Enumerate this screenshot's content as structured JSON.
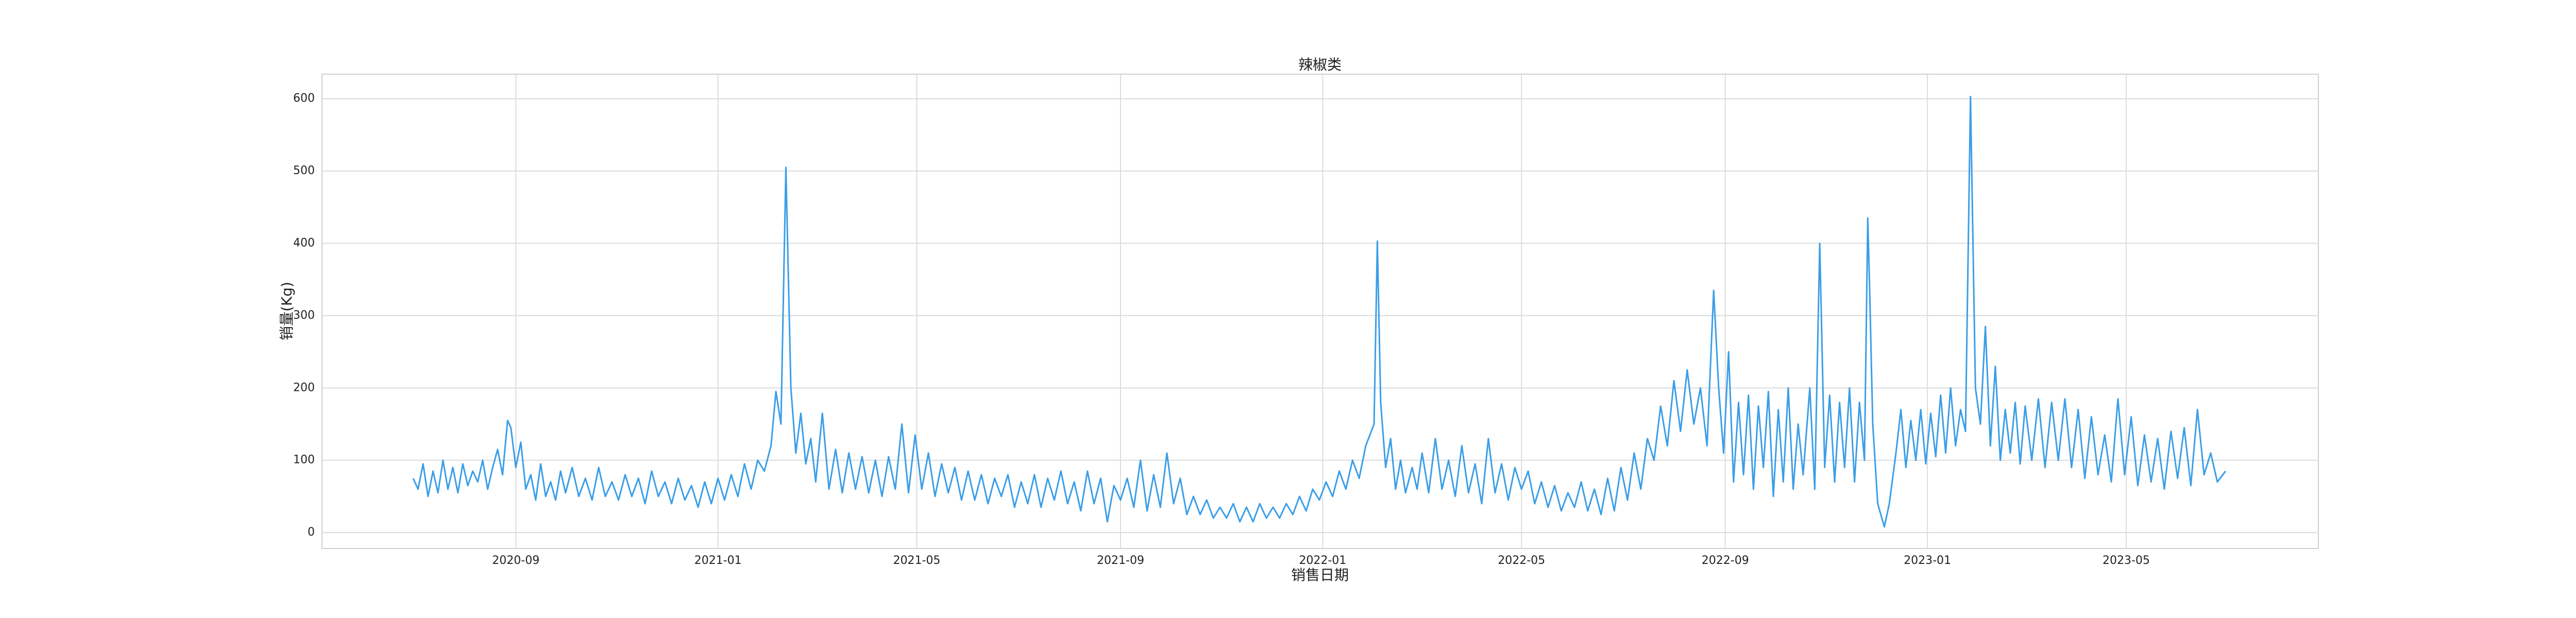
{
  "chart_data": {
    "type": "line",
    "title": "辣椒类",
    "xlabel": "销售日期",
    "ylabel": "销量(Kg)",
    "color": "#3a9ee8",
    "grid": true,
    "xlim": [
      "2020-05-07",
      "2023-08-25"
    ],
    "ylim": [
      -22,
      634
    ],
    "yticks": [
      0,
      100,
      200,
      300,
      400,
      500,
      600
    ],
    "xticks": [
      {
        "value": "2020-09-01",
        "label": "2020-09"
      },
      {
        "value": "2021-01-01",
        "label": "2021-01"
      },
      {
        "value": "2021-05-01",
        "label": "2021-05"
      },
      {
        "value": "2021-09-01",
        "label": "2021-09"
      },
      {
        "value": "2022-01-01",
        "label": "2022-01"
      },
      {
        "value": "2022-05-01",
        "label": "2022-05"
      },
      {
        "value": "2022-09-01",
        "label": "2022-09"
      },
      {
        "value": "2023-01-01",
        "label": "2023-01"
      },
      {
        "value": "2023-05-01",
        "label": "2023-05"
      }
    ],
    "x": [
      "2020-07-01",
      "2020-07-04",
      "2020-07-07",
      "2020-07-10",
      "2020-07-13",
      "2020-07-16",
      "2020-07-19",
      "2020-07-22",
      "2020-07-25",
      "2020-07-28",
      "2020-07-31",
      "2020-08-03",
      "2020-08-06",
      "2020-08-09",
      "2020-08-12",
      "2020-08-15",
      "2020-08-18",
      "2020-08-21",
      "2020-08-24",
      "2020-08-27",
      "2020-08-29",
      "2020-09-01",
      "2020-09-04",
      "2020-09-07",
      "2020-09-10",
      "2020-09-13",
      "2020-09-16",
      "2020-09-19",
      "2020-09-22",
      "2020-09-25",
      "2020-09-28",
      "2020-10-01",
      "2020-10-05",
      "2020-10-09",
      "2020-10-13",
      "2020-10-17",
      "2020-10-21",
      "2020-10-25",
      "2020-10-29",
      "2020-11-02",
      "2020-11-06",
      "2020-11-10",
      "2020-11-14",
      "2020-11-18",
      "2020-11-22",
      "2020-11-26",
      "2020-11-30",
      "2020-12-04",
      "2020-12-08",
      "2020-12-12",
      "2020-12-16",
      "2020-12-20",
      "2020-12-24",
      "2020-12-28",
      "2021-01-01",
      "2021-01-05",
      "2021-01-09",
      "2021-01-13",
      "2021-01-17",
      "2021-01-21",
      "2021-01-25",
      "2021-01-29",
      "2021-02-02",
      "2021-02-05",
      "2021-02-08",
      "2021-02-11",
      "2021-02-14",
      "2021-02-17",
      "2021-02-20",
      "2021-02-23",
      "2021-02-26",
      "2021-03-01",
      "2021-03-05",
      "2021-03-09",
      "2021-03-13",
      "2021-03-17",
      "2021-03-21",
      "2021-03-25",
      "2021-03-29",
      "2021-04-02",
      "2021-04-06",
      "2021-04-10",
      "2021-04-14",
      "2021-04-18",
      "2021-04-22",
      "2021-04-26",
      "2021-04-30",
      "2021-05-04",
      "2021-05-08",
      "2021-05-12",
      "2021-05-16",
      "2021-05-20",
      "2021-05-24",
      "2021-05-28",
      "2021-06-01",
      "2021-06-05",
      "2021-06-09",
      "2021-06-13",
      "2021-06-17",
      "2021-06-21",
      "2021-06-25",
      "2021-06-29",
      "2021-07-03",
      "2021-07-07",
      "2021-07-11",
      "2021-07-15",
      "2021-07-19",
      "2021-07-23",
      "2021-07-27",
      "2021-07-31",
      "2021-08-04",
      "2021-08-08",
      "2021-08-12",
      "2021-08-16",
      "2021-08-20",
      "2021-08-24",
      "2021-08-28",
      "2021-09-01",
      "2021-09-05",
      "2021-09-09",
      "2021-09-13",
      "2021-09-17",
      "2021-09-21",
      "2021-09-25",
      "2021-09-29",
      "2021-10-03",
      "2021-10-07",
      "2021-10-11",
      "2021-10-15",
      "2021-10-19",
      "2021-10-23",
      "2021-10-27",
      "2021-10-31",
      "2021-11-04",
      "2021-11-08",
      "2021-11-12",
      "2021-11-16",
      "2021-11-20",
      "2021-11-24",
      "2021-11-28",
      "2021-12-02",
      "2021-12-06",
      "2021-12-10",
      "2021-12-14",
      "2021-12-18",
      "2021-12-22",
      "2021-12-26",
      "2021-12-30",
      "2022-01-03",
      "2022-01-07",
      "2022-01-11",
      "2022-01-15",
      "2022-01-19",
      "2022-01-23",
      "2022-01-27",
      "2022-02-01",
      "2022-02-03",
      "2022-02-05",
      "2022-02-08",
      "2022-02-11",
      "2022-02-14",
      "2022-02-17",
      "2022-02-20",
      "2022-02-24",
      "2022-02-27",
      "2022-03-02",
      "2022-03-06",
      "2022-03-10",
      "2022-03-14",
      "2022-03-18",
      "2022-03-22",
      "2022-03-26",
      "2022-03-30",
      "2022-04-03",
      "2022-04-07",
      "2022-04-11",
      "2022-04-15",
      "2022-04-19",
      "2022-04-23",
      "2022-04-27",
      "2022-05-01",
      "2022-05-05",
      "2022-05-09",
      "2022-05-13",
      "2022-05-17",
      "2022-05-21",
      "2022-05-25",
      "2022-05-29",
      "2022-06-02",
      "2022-06-06",
      "2022-06-10",
      "2022-06-14",
      "2022-06-18",
      "2022-06-22",
      "2022-06-26",
      "2022-06-30",
      "2022-07-04",
      "2022-07-08",
      "2022-07-12",
      "2022-07-16",
      "2022-07-20",
      "2022-07-24",
      "2022-07-28",
      "2022-08-01",
      "2022-08-05",
      "2022-08-09",
      "2022-08-13",
      "2022-08-17",
      "2022-08-21",
      "2022-08-25",
      "2022-08-28",
      "2022-08-31",
      "2022-09-03",
      "2022-09-06",
      "2022-09-09",
      "2022-09-12",
      "2022-09-15",
      "2022-09-18",
      "2022-09-21",
      "2022-09-24",
      "2022-09-27",
      "2022-09-30",
      "2022-10-03",
      "2022-10-06",
      "2022-10-09",
      "2022-10-12",
      "2022-10-15",
      "2022-10-18",
      "2022-10-22",
      "2022-10-25",
      "2022-10-28",
      "2022-10-31",
      "2022-11-03",
      "2022-11-06",
      "2022-11-09",
      "2022-11-12",
      "2022-11-15",
      "2022-11-18",
      "2022-11-21",
      "2022-11-24",
      "2022-11-26",
      "2022-11-27",
      "2022-11-29",
      "2022-12-02",
      "2022-12-06",
      "2022-12-09",
      "2022-12-13",
      "2022-12-16",
      "2022-12-19",
      "2022-12-22",
      "2022-12-25",
      "2022-12-28",
      "2022-12-31",
      "2023-01-03",
      "2023-01-06",
      "2023-01-09",
      "2023-01-12",
      "2023-01-15",
      "2023-01-18",
      "2023-01-21",
      "2023-01-24",
      "2023-01-27",
      "2023-01-30",
      "2023-02-02",
      "2023-02-05",
      "2023-02-08",
      "2023-02-11",
      "2023-02-14",
      "2023-02-17",
      "2023-02-20",
      "2023-02-23",
      "2023-02-26",
      "2023-03-01",
      "2023-03-05",
      "2023-03-09",
      "2023-03-13",
      "2023-03-17",
      "2023-03-21",
      "2023-03-25",
      "2023-03-29",
      "2023-04-02",
      "2023-04-06",
      "2023-04-10",
      "2023-04-14",
      "2023-04-18",
      "2023-04-22",
      "2023-04-26",
      "2023-04-30",
      "2023-05-04",
      "2023-05-08",
      "2023-05-12",
      "2023-05-16",
      "2023-05-20",
      "2023-05-24",
      "2023-05-28",
      "2023-06-01",
      "2023-06-05",
      "2023-06-09",
      "2023-06-13",
      "2023-06-17",
      "2023-06-21",
      "2023-06-25",
      "2023-06-30"
    ],
    "values": [
      75,
      60,
      95,
      50,
      85,
      55,
      100,
      60,
      90,
      55,
      95,
      65,
      85,
      70,
      100,
      60,
      90,
      115,
      80,
      155,
      145,
      90,
      125,
      60,
      80,
      45,
      95,
      50,
      70,
      45,
      85,
      55,
      90,
      50,
      75,
      45,
      90,
      50,
      70,
      45,
      80,
      50,
      75,
      40,
      85,
      50,
      70,
      40,
      75,
      45,
      65,
      35,
      70,
      40,
      75,
      45,
      80,
      50,
      95,
      60,
      100,
      85,
      120,
      195,
      150,
      505,
      200,
      110,
      165,
      95,
      130,
      70,
      165,
      60,
      115,
      55,
      110,
      60,
      105,
      55,
      100,
      50,
      105,
      60,
      150,
      55,
      135,
      60,
      110,
      50,
      95,
      55,
      90,
      45,
      85,
      45,
      80,
      40,
      75,
      50,
      80,
      35,
      70,
      40,
      80,
      35,
      75,
      45,
      85,
      40,
      70,
      30,
      85,
      40,
      75,
      15,
      65,
      45,
      75,
      35,
      100,
      30,
      80,
      35,
      110,
      40,
      75,
      25,
      50,
      25,
      45,
      20,
      35,
      20,
      40,
      15,
      35,
      15,
      40,
      20,
      35,
      20,
      40,
      25,
      50,
      30,
      60,
      45,
      70,
      50,
      85,
      60,
      100,
      75,
      120,
      150,
      403,
      180,
      90,
      130,
      60,
      100,
      55,
      90,
      60,
      110,
      55,
      130,
      60,
      100,
      50,
      120,
      55,
      95,
      40,
      130,
      55,
      95,
      45,
      90,
      60,
      85,
      40,
      70,
      35,
      65,
      30,
      55,
      35,
      70,
      30,
      60,
      25,
      75,
      30,
      90,
      45,
      110,
      60,
      130,
      100,
      175,
      120,
      210,
      140,
      225,
      150,
      200,
      120,
      335,
      200,
      110,
      250,
      70,
      180,
      80,
      190,
      60,
      175,
      90,
      195,
      50,
      170,
      70,
      200,
      60,
      150,
      80,
      200,
      60,
      400,
      90,
      190,
      70,
      180,
      90,
      200,
      70,
      180,
      100,
      435,
      350,
      150,
      40,
      8,
      40,
      110,
      170,
      90,
      155,
      100,
      170,
      95,
      165,
      105,
      190,
      110,
      200,
      120,
      170,
      140,
      603,
      200,
      150,
      285,
      120,
      230,
      100,
      170,
      110,
      180,
      95,
      175,
      100,
      185,
      90,
      180,
      100,
      185,
      90,
      170,
      75,
      160,
      80,
      135,
      70,
      185,
      80,
      160,
      65,
      135,
      70,
      130,
      60,
      140,
      75,
      145,
      65,
      170,
      80,
      110,
      70,
      85
    ]
  }
}
